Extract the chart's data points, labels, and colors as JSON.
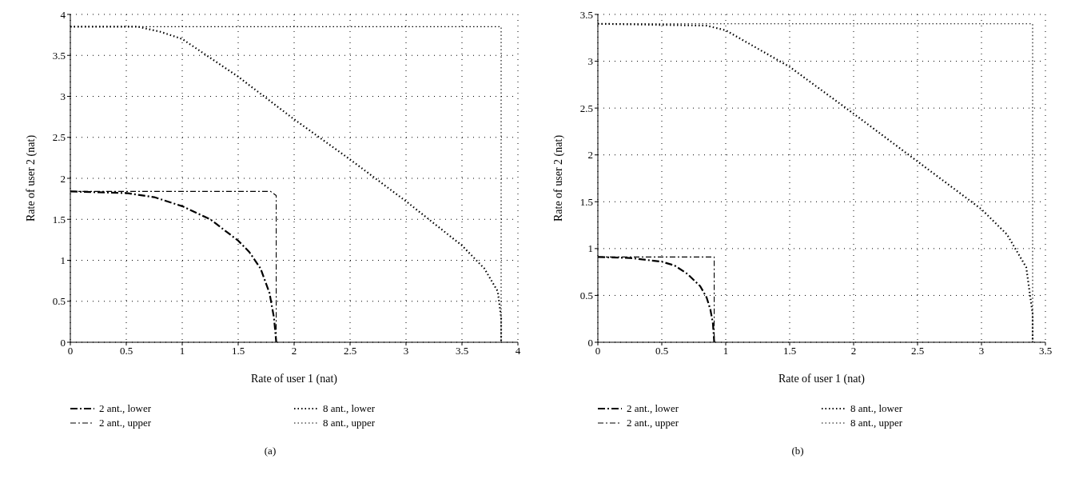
{
  "chart_data": [
    {
      "type": "line",
      "xlabel": "Rate of user 1 (nat)",
      "ylabel": "Rate of user 2 (nat)",
      "xlim": [
        0,
        4
      ],
      "ylim": [
        0,
        4
      ],
      "xticks": [
        0,
        0.5,
        1,
        1.5,
        2,
        2.5,
        3,
        3.5,
        4
      ],
      "yticks": [
        0,
        0.5,
        1,
        1.5,
        2,
        2.5,
        3,
        3.5,
        4
      ],
      "grid": true,
      "legend": "bottom",
      "annotations": [
        "(a)"
      ],
      "series": [
        {
          "name": "2 ant., lower",
          "color": "#000000",
          "line_style": "dashed",
          "x": [
            0,
            0.5,
            0.75,
            1,
            1.25,
            1.5,
            1.6,
            1.7,
            1.78,
            1.82,
            1.84
          ],
          "values": [
            1.84,
            1.82,
            1.77,
            1.66,
            1.5,
            1.24,
            1.1,
            0.9,
            0.6,
            0.3,
            0
          ]
        },
        {
          "name": "2 ant., upper",
          "color": "#000000",
          "line_style": "dashed",
          "x": [
            0,
            1.79,
            1.84,
            1.84
          ],
          "values": [
            1.84,
            1.84,
            1.79,
            0
          ]
        },
        {
          "name": "8 ant., lower",
          "color": "#000000",
          "line_style": "dotted",
          "x": [
            0,
            0.6,
            0.8,
            1,
            1.5,
            2,
            2.5,
            3,
            3.5,
            3.7,
            3.82,
            3.85,
            3.85
          ],
          "values": [
            3.85,
            3.85,
            3.79,
            3.7,
            3.24,
            2.72,
            2.23,
            1.72,
            1.18,
            0.9,
            0.62,
            0.3,
            0
          ]
        },
        {
          "name": "8 ant., upper",
          "color": "#000000",
          "line_style": "dotted",
          "x": [
            0,
            3.85,
            3.85
          ],
          "values": [
            3.85,
            3.85,
            0
          ]
        }
      ]
    },
    {
      "type": "line",
      "xlabel": "Rate of user 1 (nat)",
      "ylabel": "Rate of user 2 (nat)",
      "xlim": [
        0,
        3.5
      ],
      "ylim": [
        0,
        3.5
      ],
      "xticks": [
        0,
        0.5,
        1,
        1.5,
        2,
        2.5,
        3,
        3.5
      ],
      "yticks": [
        0,
        0.5,
        1,
        1.5,
        2,
        2.5,
        3,
        3.5
      ],
      "grid": true,
      "legend": "bottom",
      "annotations": [
        "(b)"
      ],
      "series": [
        {
          "name": "2 ant., lower",
          "color": "#000000",
          "line_style": "dashed",
          "x": [
            0,
            0.25,
            0.5,
            0.6,
            0.7,
            0.8,
            0.85,
            0.88,
            0.9,
            0.91
          ],
          "values": [
            0.91,
            0.9,
            0.86,
            0.82,
            0.73,
            0.6,
            0.48,
            0.35,
            0.2,
            0
          ]
        },
        {
          "name": "2 ant., upper",
          "color": "#000000",
          "line_style": "dashed",
          "x": [
            0,
            0.91,
            0.91
          ],
          "values": [
            0.91,
            0.91,
            0
          ]
        },
        {
          "name": "8 ant., lower",
          "color": "#000000",
          "line_style": "dotted",
          "x": [
            0,
            0.85,
            1,
            1.5,
            2,
            2.5,
            3,
            3.2,
            3.35,
            3.4,
            3.4
          ],
          "values": [
            3.4,
            3.38,
            3.33,
            2.94,
            2.44,
            1.93,
            1.42,
            1.15,
            0.8,
            0.3,
            0
          ]
        },
        {
          "name": "8 ant., upper",
          "color": "#000000",
          "line_style": "dotted",
          "x": [
            0,
            3.4,
            3.4
          ],
          "values": [
            3.4,
            3.4,
            0
          ]
        }
      ]
    }
  ]
}
